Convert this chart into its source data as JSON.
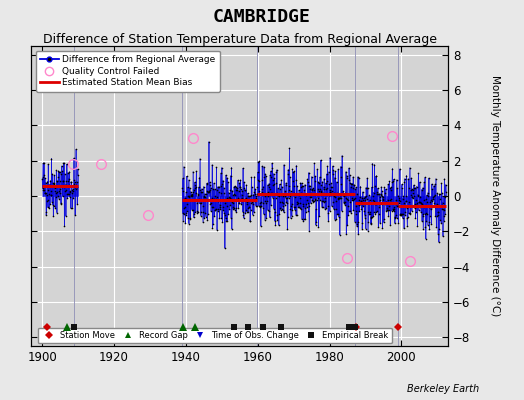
{
  "title": "CAMBRIDGE",
  "subtitle": "Difference of Station Temperature Data from Regional Average",
  "ylabel": "Monthly Temperature Anomaly Difference (°C)",
  "xlim": [
    1897,
    2013
  ],
  "ylim": [
    -8.5,
    8.5
  ],
  "yticks": [
    -8,
    -6,
    -4,
    -2,
    0,
    2,
    4,
    6,
    8
  ],
  "xticks": [
    1900,
    1920,
    1940,
    1960,
    1980,
    2000
  ],
  "bg_color": "#e8e8e8",
  "plot_bg_color": "#d4d4d4",
  "grid_color": "#ffffff",
  "title_fontsize": 13,
  "subtitle_fontsize": 9,
  "segments": [
    {
      "start": 1900.0,
      "end": 1908.75,
      "bias": 0.55
    },
    {
      "start": 1908.75,
      "end": 1910.0,
      "bias": 0.55
    },
    {
      "start": 1939.0,
      "end": 1959.75,
      "bias": -0.2
    },
    {
      "start": 1959.75,
      "end": 1987.0,
      "bias": 0.1
    },
    {
      "start": 1987.0,
      "end": 1999.0,
      "bias": -0.4
    },
    {
      "start": 1999.0,
      "end": 2012.5,
      "bias": -0.55
    }
  ],
  "gap_start": 1910.0,
  "gap_end": 1939.0,
  "boundary_years": [
    1908.75,
    1939.0,
    1959.75,
    1987.0,
    1999.0
  ],
  "boundary_color": "#9999bb",
  "station_moves": [
    1901.3,
    1987.5,
    1999.2
  ],
  "record_gaps": [
    1906.8,
    1939.3,
    1942.5
  ],
  "time_obs_changes": [],
  "empirical_breaks": [
    1908.75,
    1953.5,
    1957.2,
    1961.5,
    1966.5,
    1985.3,
    1987.0
  ],
  "qc_failed_approx": [
    [
      1908.5,
      1.8
    ],
    [
      1916.5,
      1.8
    ],
    [
      1929.5,
      -1.1
    ],
    [
      1942.0,
      3.3
    ],
    [
      1984.8,
      -3.5
    ],
    [
      1997.5,
      3.4
    ],
    [
      2002.5,
      -3.7
    ]
  ],
  "data_color": "#0000dd",
  "dot_color": "#000000",
  "bias_color": "#dd0000",
  "qc_color": "#ff88cc",
  "station_move_color": "#cc0000",
  "record_gap_color": "#006600",
  "time_obs_color": "#0000cc",
  "empirical_break_color": "#111111",
  "marker_y": -7.4,
  "seed": 42
}
